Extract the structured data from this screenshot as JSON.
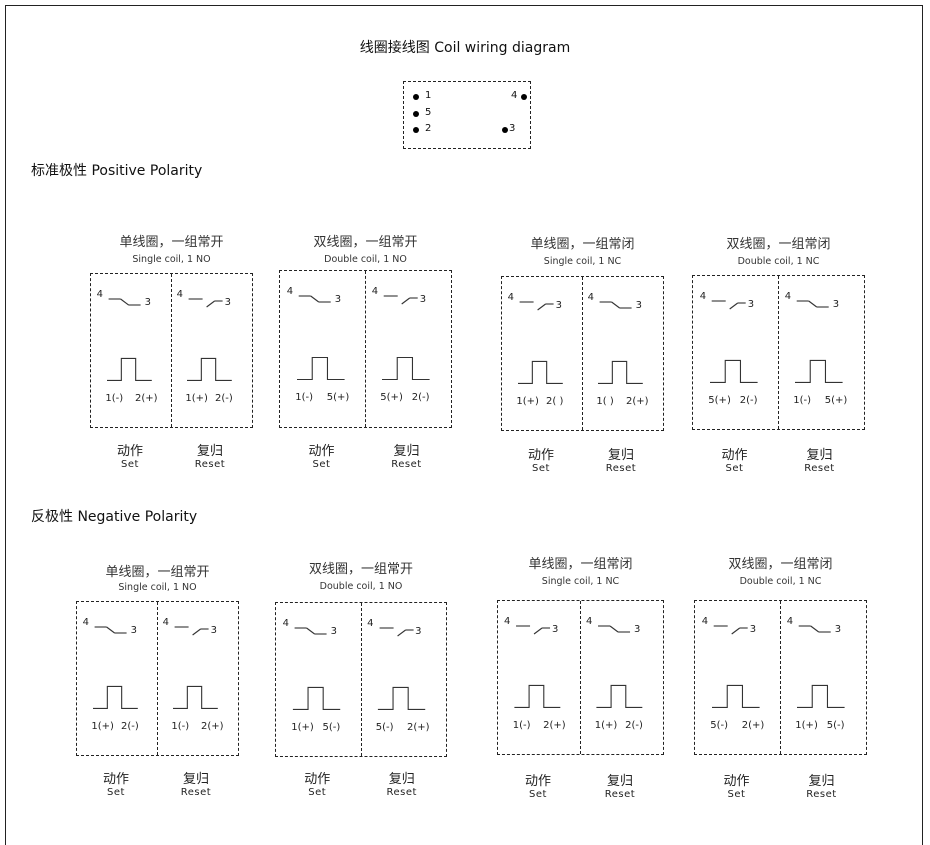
{
  "title": "线圈接线图 Coil wiring diagram",
  "pinout": {
    "pins": [
      {
        "id": "p1",
        "label": "1"
      },
      {
        "id": "p5",
        "label": "5"
      },
      {
        "id": "p2",
        "label": "2"
      },
      {
        "id": "p4",
        "label": "4"
      },
      {
        "id": "p3",
        "label": "3"
      }
    ]
  },
  "sections": [
    {
      "name": "标准极性 Positive Polarity",
      "diagrams": [
        {
          "cn": "单线圈，一组常开",
          "en": "Single coil, 1 NO",
          "left": {
            "pin4": "4",
            "pin3": "3",
            "contact": "open",
            "pol_left": "1(-)",
            "pol_right": "2(+)"
          },
          "right": {
            "pin4": "4",
            "pin3": "3",
            "contact": "closed",
            "pol_left": "1(+)",
            "pol_right": "2(-)"
          },
          "set_cn": "动作",
          "set_en": "Set",
          "reset_cn": "复归",
          "reset_en": "Reset"
        },
        {
          "cn": "双线圈，一组常开",
          "en": "Double coil, 1 NO",
          "left": {
            "pin4": "4",
            "pin3": "3",
            "contact": "open",
            "pol_left": "1(-)",
            "pol_right": "5(+)"
          },
          "right": {
            "pin4": "4",
            "pin3": "3",
            "contact": "closed",
            "pol_left": "5(+)",
            "pol_right": "2(-)"
          },
          "set_cn": "动作",
          "set_en": "Set",
          "reset_cn": "复归",
          "reset_en": "Reset"
        },
        {
          "cn": "单线圈，一组常闭",
          "en": "Single coil, 1 NC",
          "left": {
            "pin4": "4",
            "pin3": "3",
            "contact": "closed",
            "pol_left": "1(+)",
            "pol_right": "2( )"
          },
          "right": {
            "pin4": "4",
            "pin3": "3",
            "contact": "open",
            "pol_left": "1( )",
            "pol_right": "2(+)"
          },
          "set_cn": "动作",
          "set_en": "Set",
          "reset_cn": "复归",
          "reset_en": "Reset"
        },
        {
          "cn": "双线圈，一组常闭",
          "en": "Double coil, 1 NC",
          "left": {
            "pin4": "4",
            "pin3": "3",
            "contact": "closed",
            "pol_left": "5(+)",
            "pol_right": "2(-)"
          },
          "right": {
            "pin4": "4",
            "pin3": "3",
            "contact": "open",
            "pol_left": "1(-)",
            "pol_right": "5(+)"
          },
          "set_cn": "动作",
          "set_en": "Set",
          "reset_cn": "复归",
          "reset_en": "Reset"
        }
      ]
    },
    {
      "name": "反极性 Negative Polarity",
      "diagrams": [
        {
          "cn": "单线圈，一组常开",
          "en": "Single coil, 1 NO",
          "left": {
            "pin4": "4",
            "pin3": "3",
            "contact": "open",
            "pol_left": "1(+)",
            "pol_right": "2(-)"
          },
          "right": {
            "pin4": "4",
            "pin3": "3",
            "contact": "closed",
            "pol_left": "1(-)",
            "pol_right": "2(+)"
          },
          "set_cn": "动作",
          "set_en": "Set",
          "reset_cn": "复归",
          "reset_en": "Reset"
        },
        {
          "cn": "双线圈，一组常开",
          "en": "Double coil, 1 NO",
          "left": {
            "pin4": "4",
            "pin3": "3",
            "contact": "open",
            "pol_left": "1(+)",
            "pol_right": "5(-)"
          },
          "right": {
            "pin4": "4",
            "pin3": "3",
            "contact": "closed",
            "pol_left": "5(-)",
            "pol_right": "2(+)"
          },
          "set_cn": "动作",
          "set_en": "Set",
          "reset_cn": "复归",
          "reset_en": "Reset"
        },
        {
          "cn": "单线圈，一组常闭",
          "en": "Single coil, 1 NC",
          "left": {
            "pin4": "4",
            "pin3": "3",
            "contact": "closed",
            "pol_left": "1(-)",
            "pol_right": "2(+)"
          },
          "right": {
            "pin4": "4",
            "pin3": "3",
            "contact": "open",
            "pol_left": "1(+)",
            "pol_right": "2(-)"
          },
          "set_cn": "动作",
          "set_en": "Set",
          "reset_cn": "复归",
          "reset_en": "Reset"
        },
        {
          "cn": "双线圈，一组常闭",
          "en": "Double coil, 1 NC",
          "left": {
            "pin4": "4",
            "pin3": "3",
            "contact": "closed",
            "pol_left": "5(-)",
            "pol_right": "2(+)"
          },
          "right": {
            "pin4": "4",
            "pin3": "3",
            "contact": "open",
            "pol_left": "1(+)",
            "pol_right": "5(-)"
          },
          "set_cn": "动作",
          "set_en": "Set",
          "reset_cn": "复归",
          "reset_en": "Reset"
        }
      ]
    }
  ]
}
